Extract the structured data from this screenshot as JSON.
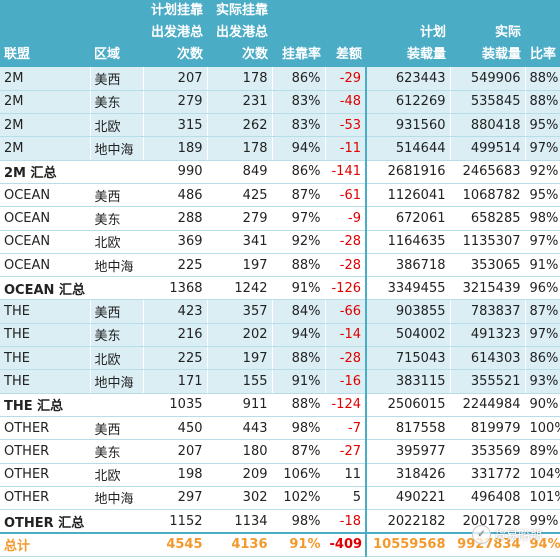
{
  "headers": [
    [
      "联盟"
    ],
    [
      "区域"
    ],
    [
      "计划挂靠",
      "出发港总",
      "次数"
    ],
    [
      "实际挂靠",
      "出发港总",
      "次数"
    ],
    [
      "挂靠率"
    ],
    [
      "差额"
    ],
    [
      "计划",
      "装载量"
    ],
    [
      "实际",
      "装载量"
    ],
    [
      "比率"
    ]
  ],
  "rows": [
    {
      "type": "detail",
      "band": true,
      "cells": [
        "2M",
        "美西",
        "207",
        "178",
        "86%",
        "-29",
        "623443",
        "549906",
        "88%"
      ]
    },
    {
      "type": "detail",
      "band": true,
      "cells": [
        "2M",
        "美东",
        "279",
        "231",
        "83%",
        "-48",
        "612269",
        "535845",
        "88%"
      ]
    },
    {
      "type": "detail",
      "band": true,
      "cells": [
        "2M",
        "北欧",
        "315",
        "262",
        "83%",
        "-53",
        "931560",
        "880418",
        "95%"
      ]
    },
    {
      "type": "detail",
      "band": true,
      "cells": [
        "2M",
        "地中海",
        "189",
        "178",
        "94%",
        "-11",
        "514644",
        "499514",
        "97%"
      ]
    },
    {
      "type": "subtotal",
      "band": true,
      "cells": [
        "2M 汇总",
        "",
        "990",
        "849",
        "86%",
        "-141",
        "2681916",
        "2465683",
        "92%"
      ]
    },
    {
      "type": "detail",
      "band": false,
      "cells": [
        "OCEAN",
        "美西",
        "486",
        "425",
        "87%",
        "-61",
        "1126041",
        "1068782",
        "95%"
      ]
    },
    {
      "type": "detail",
      "band": false,
      "cells": [
        "OCEAN",
        "美东",
        "288",
        "279",
        "97%",
        "-9",
        "672061",
        "658285",
        "98%"
      ]
    },
    {
      "type": "detail",
      "band": false,
      "cells": [
        "OCEAN",
        "北欧",
        "369",
        "341",
        "92%",
        "-28",
        "1164635",
        "1135307",
        "97%"
      ]
    },
    {
      "type": "detail",
      "band": false,
      "cells": [
        "OCEAN",
        "地中海",
        "225",
        "197",
        "88%",
        "-28",
        "386718",
        "353065",
        "91%"
      ]
    },
    {
      "type": "subtotal",
      "band": false,
      "cells": [
        "OCEAN 汇总",
        "",
        "1368",
        "1242",
        "91%",
        "-126",
        "3349455",
        "3215439",
        "96%"
      ]
    },
    {
      "type": "detail",
      "band": true,
      "cells": [
        "THE",
        "美西",
        "423",
        "357",
        "84%",
        "-66",
        "903855",
        "783837",
        "87%"
      ]
    },
    {
      "type": "detail",
      "band": true,
      "cells": [
        "THE",
        "美东",
        "216",
        "202",
        "94%",
        "-14",
        "504002",
        "491323",
        "97%"
      ]
    },
    {
      "type": "detail",
      "band": true,
      "cells": [
        "THE",
        "北欧",
        "225",
        "197",
        "88%",
        "-28",
        "715043",
        "614303",
        "86%"
      ]
    },
    {
      "type": "detail",
      "band": true,
      "cells": [
        "THE",
        "地中海",
        "171",
        "155",
        "91%",
        "-16",
        "383115",
        "355521",
        "93%"
      ]
    },
    {
      "type": "subtotal",
      "band": true,
      "cells": [
        "THE 汇总",
        "",
        "1035",
        "911",
        "88%",
        "-124",
        "2506015",
        "2244984",
        "90%"
      ]
    },
    {
      "type": "detail",
      "band": false,
      "cells": [
        "OTHER",
        "美西",
        "450",
        "443",
        "98%",
        "-7",
        "817558",
        "819979",
        "100%"
      ]
    },
    {
      "type": "detail",
      "band": false,
      "cells": [
        "OTHER",
        "美东",
        "207",
        "180",
        "87%",
        "-27",
        "395977",
        "353569",
        "89%"
      ]
    },
    {
      "type": "detail",
      "band": false,
      "cells": [
        "OTHER",
        "北欧",
        "198",
        "209",
        "106%",
        "11",
        "318426",
        "331772",
        "104%"
      ]
    },
    {
      "type": "detail",
      "band": false,
      "cells": [
        "OTHER",
        "地中海",
        "297",
        "302",
        "102%",
        "5",
        "490221",
        "496408",
        "101%"
      ]
    },
    {
      "type": "subtotal",
      "band": false,
      "cells": [
        "OTHER 汇总",
        "",
        "1152",
        "1134",
        "98%",
        "-18",
        "2022182",
        "2001728",
        "99%"
      ]
    },
    {
      "type": "total",
      "band": false,
      "cells": [
        "总计",
        "",
        "4545",
        "4136",
        "91%",
        "-409",
        "10559568",
        "9927834",
        "94%"
      ]
    }
  ],
  "watermark": {
    "text": "货易船期",
    "icon": "wechat-badge-icon"
  },
  "colors": {
    "header_bg": "#4bacc6",
    "band_bg": "#dbeef4",
    "negative": "#e00000",
    "total": "#f39a2e"
  }
}
